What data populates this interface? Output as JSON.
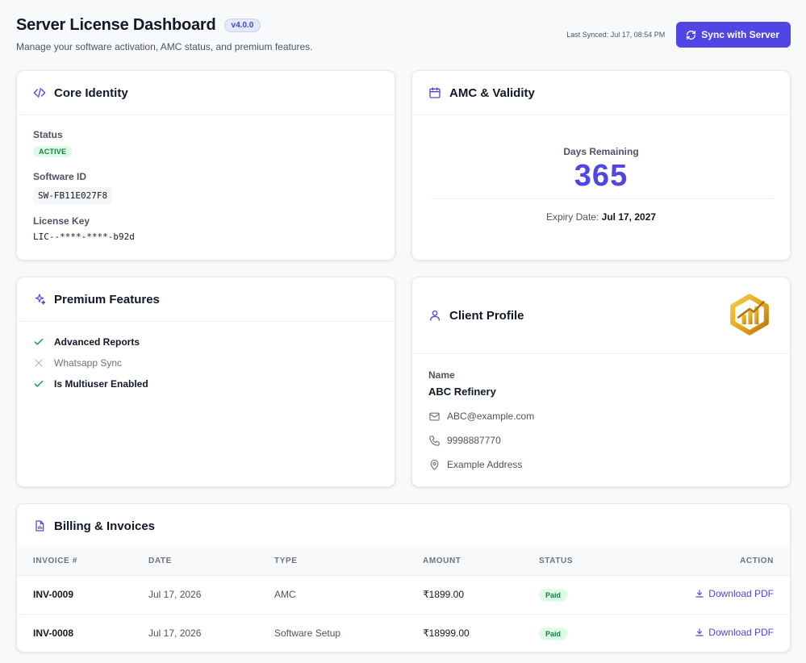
{
  "header": {
    "title": "Server License Dashboard",
    "version": "v4.0.0",
    "subtitle": "Manage your software activation, AMC status, and premium features.",
    "last_synced": "Last Synced: Jul 17, 08:54 PM",
    "sync_button": "Sync with Server"
  },
  "core_identity": {
    "title": "Core Identity",
    "status_label": "Status",
    "status_value": "ACTIVE",
    "software_id_label": "Software ID",
    "software_id": "SW-FB11E027F8",
    "license_key_label": "License Key",
    "license_key": "LIC--****-****-b92d"
  },
  "amc": {
    "title": "AMC & Validity",
    "days_label": "Days Remaining",
    "days_value": "365",
    "expiry_label": "Expiry Date:",
    "expiry_value": "Jul 17, 2027"
  },
  "features": {
    "title": "Premium Features",
    "items": [
      {
        "label": "Advanced Reports",
        "enabled": true
      },
      {
        "label": "Whatsapp Sync",
        "enabled": false
      },
      {
        "label": "Is Multiuser Enabled",
        "enabled": true
      }
    ]
  },
  "client": {
    "title": "Client Profile",
    "name_label": "Name",
    "name": "ABC Refinery",
    "email": "ABC@example.com",
    "phone": "9998887770",
    "address": "Example Address"
  },
  "billing": {
    "title": "Billing & Invoices",
    "columns": [
      "INVOICE #",
      "DATE",
      "TYPE",
      "AMOUNT",
      "STATUS",
      "ACTION"
    ],
    "rows": [
      {
        "invoice": "INV-0009",
        "date": "Jul 17, 2026",
        "type": "AMC",
        "amount": "₹1899.00",
        "status": "Paid",
        "action": "Download PDF"
      },
      {
        "invoice": "INV-0008",
        "date": "Jul 17, 2026",
        "type": "Software Setup",
        "amount": "₹18999.00",
        "status": "Paid",
        "action": "Download PDF"
      }
    ]
  },
  "colors": {
    "accent": "#4f46e5",
    "success": "#15803d",
    "success_bg": "#dcfce7",
    "logo_gold": "#e0a21a"
  }
}
